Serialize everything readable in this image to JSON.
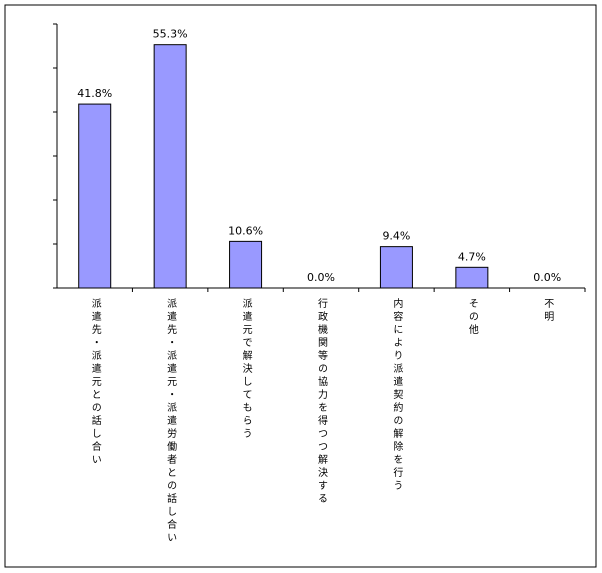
{
  "chart_data": {
    "type": "bar",
    "categories": [
      "派遣先・派遣元との話し合い",
      "派遣先・派遣元・派遣労働者との話し合い",
      "派遣元で解決してもらう",
      "行政機関等の協力を得つつ解決する",
      "内容により派遣契約の解除を行う",
      "その他",
      "不明"
    ],
    "values": [
      41.8,
      55.3,
      10.6,
      0.0,
      9.4,
      4.7,
      0.0
    ],
    "value_labels": [
      "41.8%",
      "55.3%",
      "10.6%",
      "0.0%",
      "9.4%",
      "4.7%",
      "0.0%"
    ],
    "color": "#9999ff",
    "ylim": [
      0,
      60
    ],
    "yticks": [
      0,
      10,
      20,
      30,
      40,
      50,
      60
    ]
  }
}
